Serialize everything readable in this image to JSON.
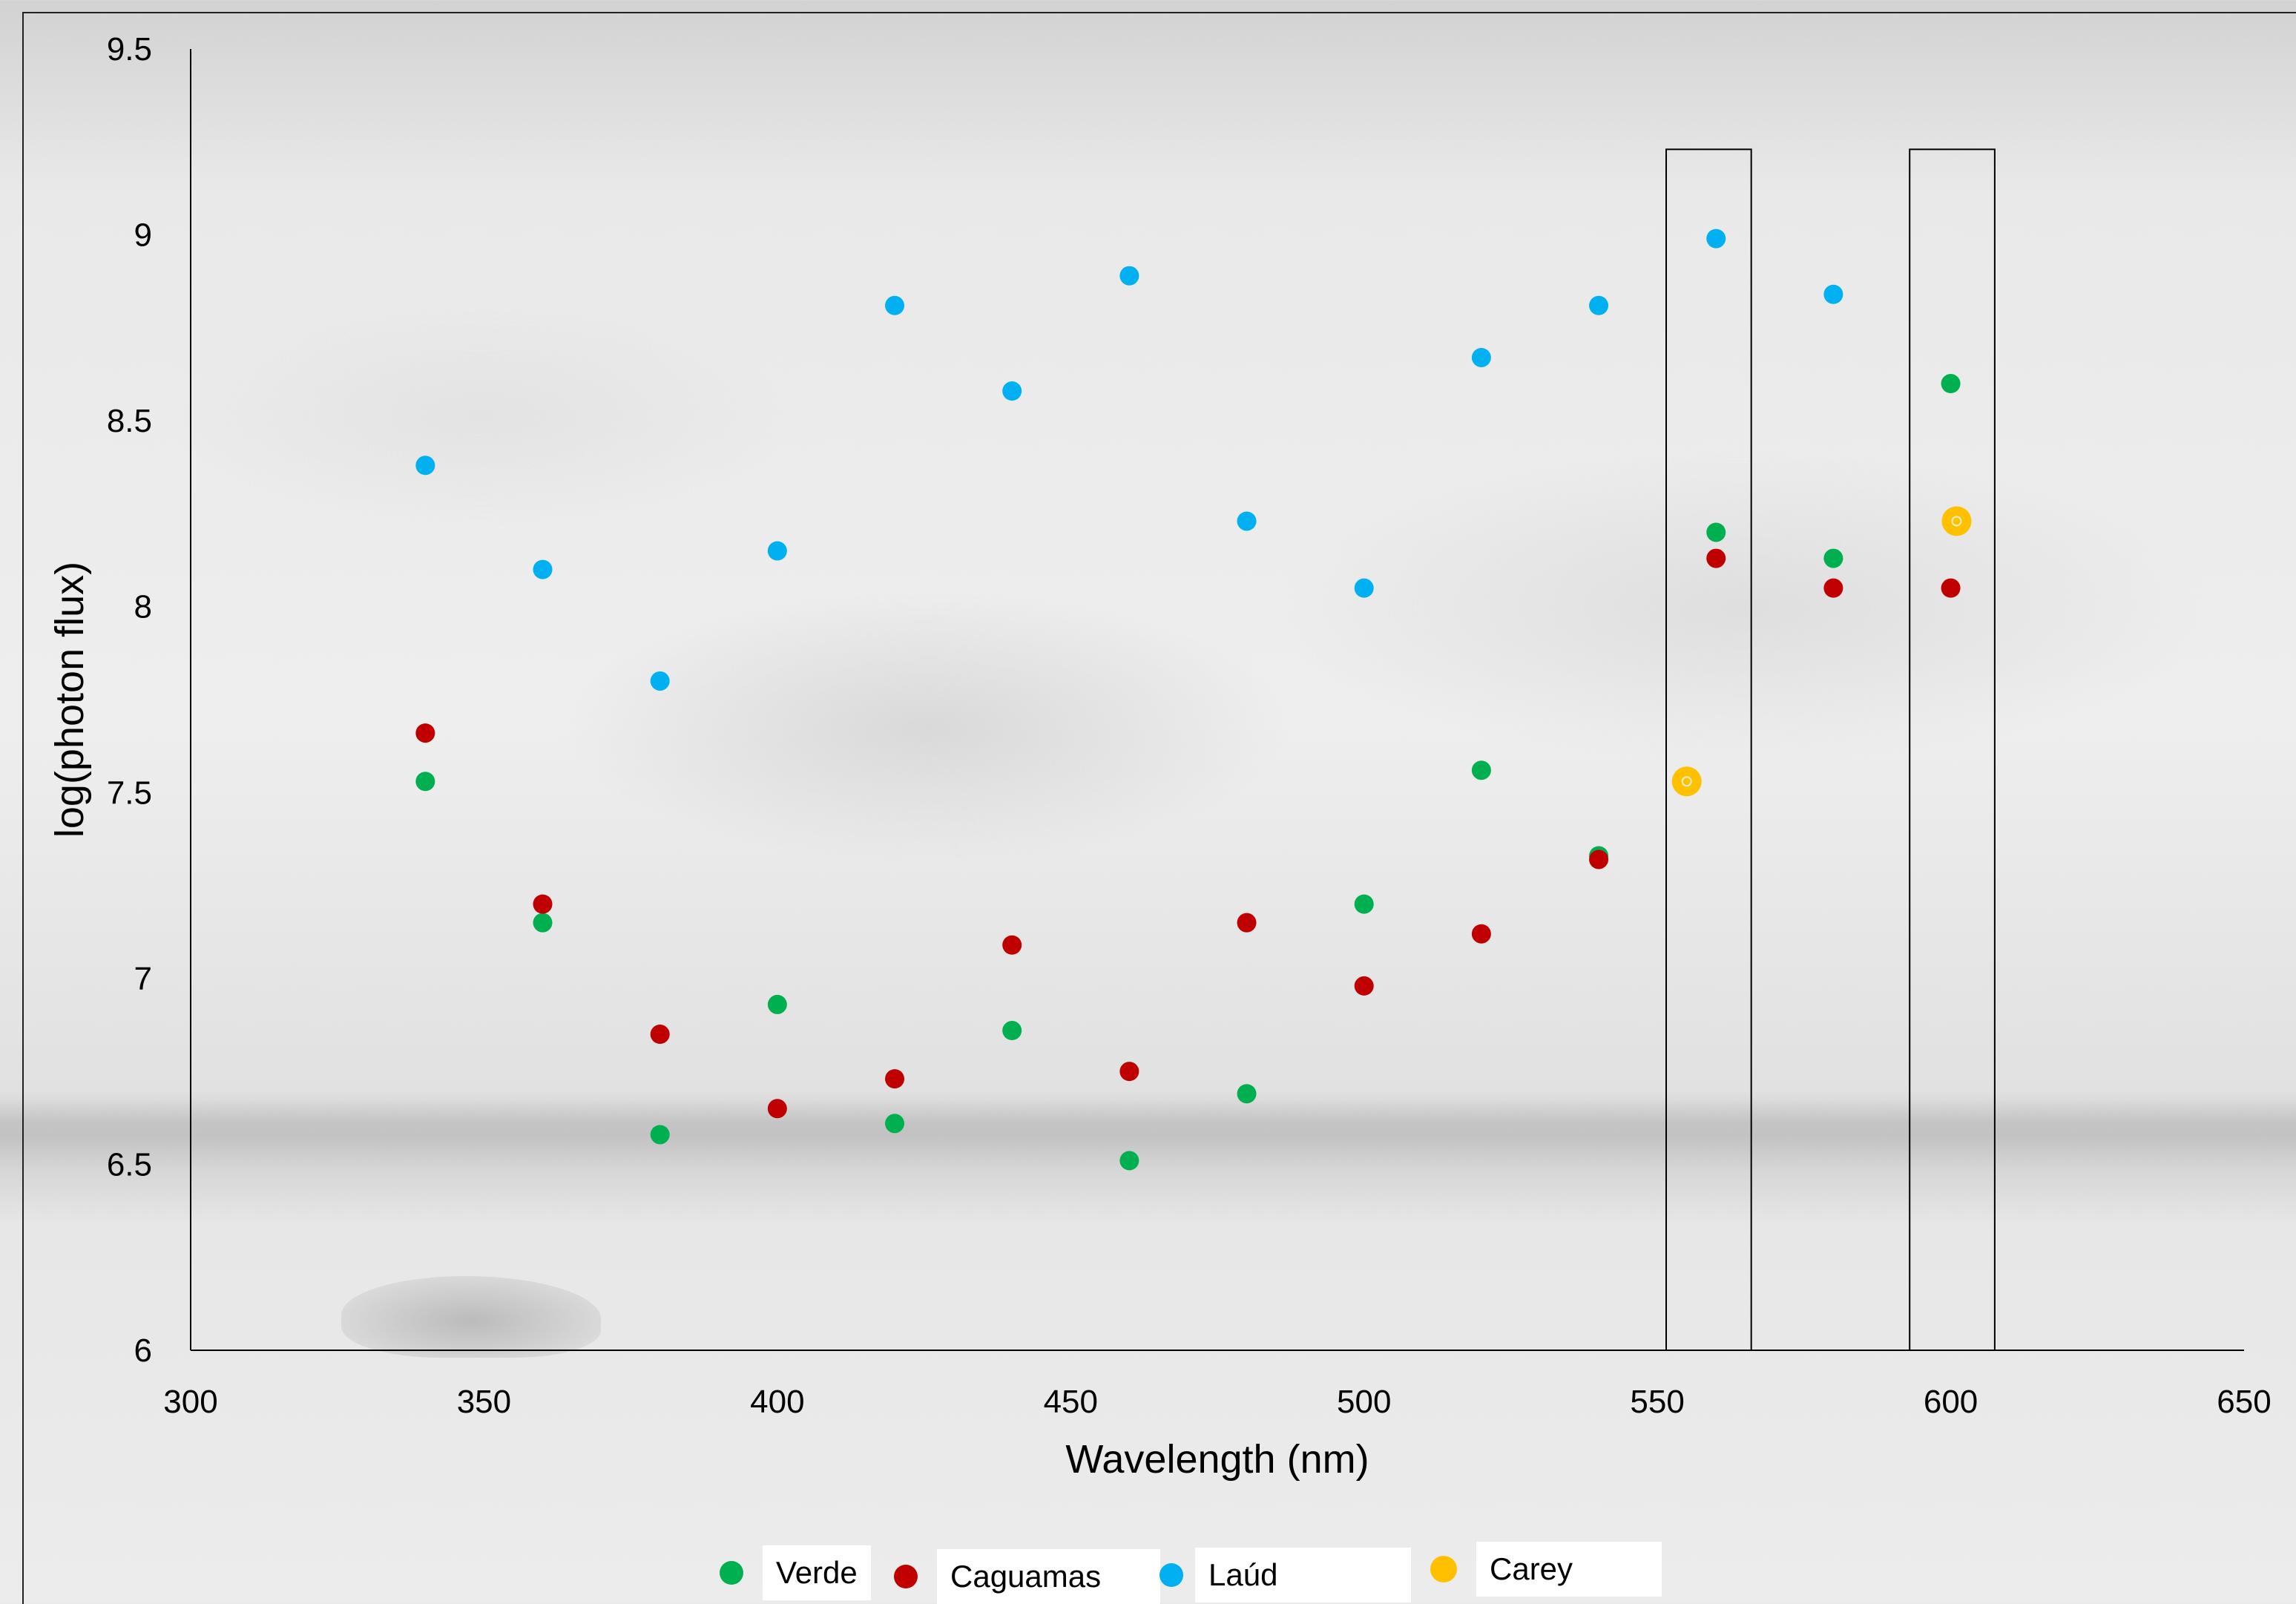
{
  "chart_data": {
    "type": "scatter",
    "title": "",
    "xlabel": "Wavelength (nm)",
    "ylabel": "log(photon flux)",
    "xlim": [
      300,
      650
    ],
    "ylim": [
      6,
      9.5
    ],
    "xticks": [
      "300",
      "350",
      "400",
      "450",
      "500",
      "550",
      "600",
      "650"
    ],
    "yticks": [
      "6",
      "6.5",
      "7",
      "7.5",
      "8",
      "8.5",
      "9",
      "9.5"
    ],
    "xtick_values": [
      300,
      350,
      400,
      450,
      500,
      550,
      600,
      650
    ],
    "ytick_values": [
      6,
      6.5,
      7,
      7.5,
      8,
      8.5,
      9,
      9.5
    ],
    "grid": false,
    "legend_position": "bottom",
    "series": [
      {
        "name": "Verde",
        "color": "#00b050",
        "x": [
          340,
          360,
          380,
          400,
          420,
          440,
          460,
          480,
          500,
          520,
          540,
          560,
          580,
          600
        ],
        "y": [
          7.53,
          7.15,
          6.58,
          6.93,
          6.61,
          6.86,
          6.51,
          6.69,
          7.2,
          7.56,
          7.33,
          8.2,
          8.13,
          8.6
        ]
      },
      {
        "name": "Caguamas",
        "color": "#c00000",
        "x": [
          340,
          360,
          380,
          400,
          420,
          440,
          460,
          480,
          500,
          520,
          540,
          560,
          580,
          600
        ],
        "y": [
          7.66,
          7.2,
          6.85,
          6.65,
          6.73,
          7.09,
          6.75,
          7.15,
          6.98,
          7.12,
          7.32,
          8.13,
          8.05,
          8.05
        ]
      },
      {
        "name": "Laúd",
        "color": "#00b0f0",
        "x": [
          340,
          360,
          380,
          400,
          420,
          440,
          460,
          480,
          500,
          520,
          540,
          560,
          580,
          600
        ],
        "y": [
          8.38,
          8.1,
          7.8,
          8.15,
          8.81,
          8.58,
          8.89,
          8.23,
          8.05,
          8.67,
          8.81,
          8.99,
          8.84,
          null
        ]
      },
      {
        "name": "Carey",
        "color": "#ffc000",
        "x": [
          555,
          601
        ],
        "y": [
          7.53,
          8.23
        ]
      }
    ],
    "highlight_boxes": [
      {
        "x_range": [
          551.5,
          566
        ],
        "y_range": [
          6,
          9.23
        ]
      },
      {
        "x_range": [
          593,
          607.5
        ],
        "y_range": [
          6,
          9.23
        ]
      }
    ]
  }
}
